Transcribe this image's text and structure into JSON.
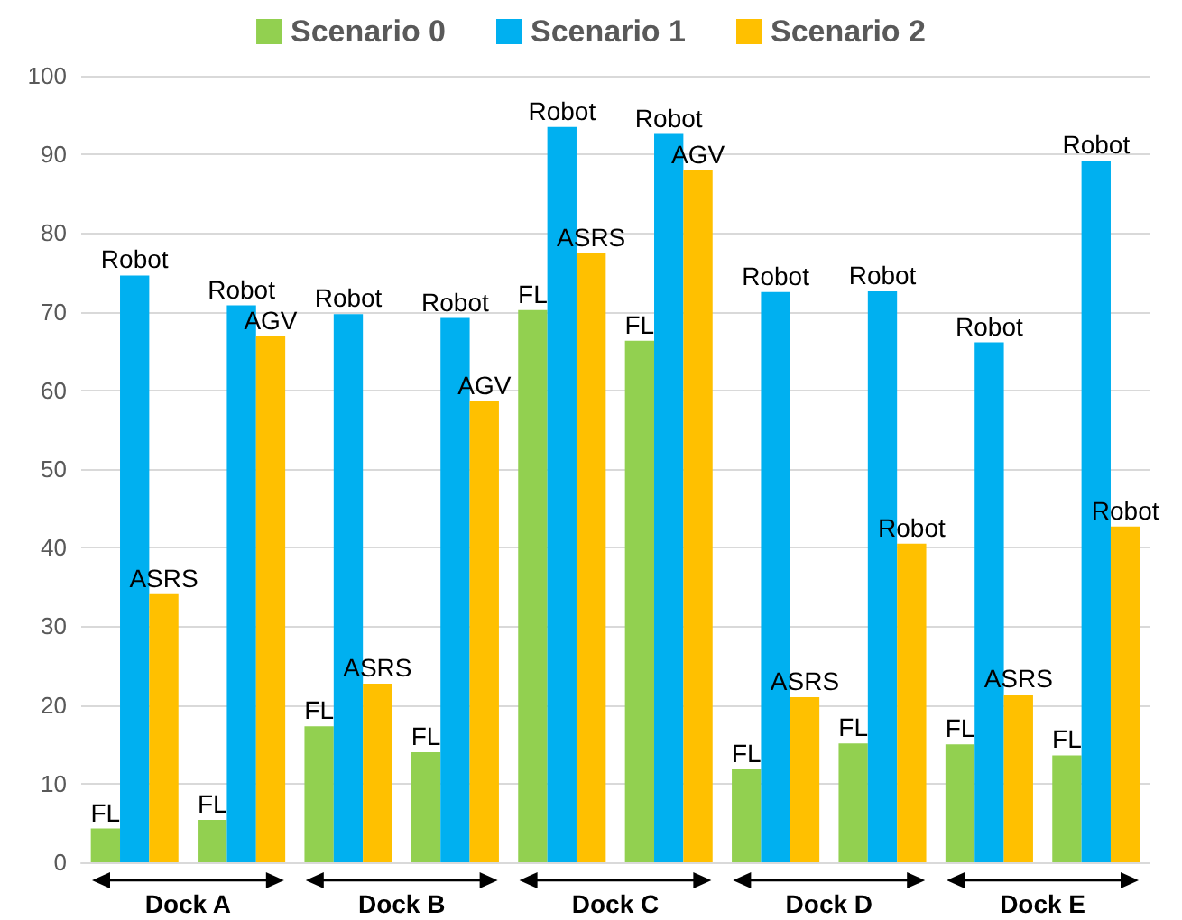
{
  "chart_data": {
    "type": "bar",
    "categories": [
      null,
      null,
      null,
      null,
      null,
      null,
      null,
      null,
      null,
      null
    ],
    "series": [
      {
        "name": "Scenario 0",
        "color": "#92d050",
        "values": [
          4.3,
          5.4,
          17.3,
          14,
          70.2,
          66.3,
          11.8,
          15.1,
          15,
          13.6
        ],
        "value_labels": [
          "FL",
          "FL",
          "FL",
          "FL",
          "FL",
          "FL",
          "FL",
          "FL",
          "FL",
          "FL"
        ]
      },
      {
        "name": "Scenario 1",
        "color": "#00b0f0",
        "values": [
          74.6,
          70.8,
          69.7,
          69.2,
          93.5,
          92.6,
          72.5,
          72.6,
          66.1,
          89.2
        ],
        "value_labels": [
          "Robot",
          "Robot",
          "Robot",
          "Robot",
          "Robot",
          "Robot",
          "Robot",
          "Robot",
          "Robot",
          "Robot"
        ]
      },
      {
        "name": "Scenario 2",
        "color": "#ffc000",
        "values": [
          34.1,
          66.9,
          22.7,
          58.6,
          77.4,
          88,
          21,
          40.5,
          21.3,
          42.7
        ],
        "value_labels": [
          "ASRS",
          "AGV",
          "ASRS",
          "AGV",
          "ASRS",
          "AGV",
          "ASRS",
          "Robot",
          "ASRS",
          "Robot"
        ]
      }
    ],
    "annotations": [
      "Dock A",
      "Dock B",
      "Dock C",
      "Dock D",
      "Dock E"
    ],
    "ylim": [
      0,
      100
    ],
    "yticks": [
      0,
      10,
      20,
      30,
      40,
      50,
      60,
      70,
      80,
      90,
      100
    ],
    "grid": "y",
    "legend": "top"
  }
}
